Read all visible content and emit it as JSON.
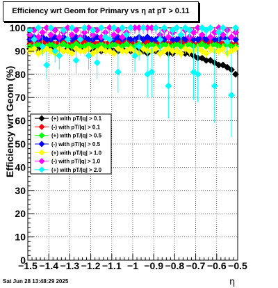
{
  "title": "Efficiency wrt Geom for Primary vs    η   at pT > 0.11",
  "footer": "Sat Jun 28 13:48:29 2025",
  "chart_data": {
    "type": "scatter",
    "title": "Efficiency wrt Geom for Primary vs    η   at pT > 0.11",
    "xlabel": "η",
    "ylabel": "Efficiency wrt Geom (%)",
    "xlim": [
      -1.5,
      -0.5
    ],
    "ylim": [
      0,
      100
    ],
    "grid": true,
    "legend_position": "left-middle",
    "x_ticks": [
      -1.5,
      -1.4,
      -1.3,
      -1.2,
      -1.1,
      -1.0,
      -0.9,
      -0.8,
      -0.7,
      -0.6,
      -0.5
    ],
    "x_tick_labels": [
      "−1.5",
      "−1.4",
      "−1.3",
      "−1.2",
      "−1.1",
      "−1",
      "−0.9",
      "−0.8",
      "−0.7",
      "−0.6",
      "−0.5"
    ],
    "y_ticks": [
      0,
      10,
      20,
      30,
      40,
      50,
      60,
      70,
      80,
      90,
      100
    ],
    "y_tick_labels": [
      "0",
      "10",
      "20",
      "30",
      "40",
      "50",
      "60",
      "70",
      "80",
      "90",
      "100"
    ],
    "x": [
      -1.49,
      -1.47,
      -1.45,
      -1.43,
      -1.41,
      -1.39,
      -1.37,
      -1.35,
      -1.33,
      -1.31,
      -1.29,
      -1.27,
      -1.25,
      -1.23,
      -1.21,
      -1.19,
      -1.17,
      -1.15,
      -1.13,
      -1.11,
      -1.09,
      -1.07,
      -1.05,
      -1.03,
      -1.01,
      -0.99,
      -0.97,
      -0.95,
      -0.93,
      -0.91,
      -0.89,
      -0.87,
      -0.85,
      -0.83,
      -0.81,
      -0.79,
      -0.77,
      -0.75,
      -0.73,
      -0.71,
      -0.69,
      -0.67,
      -0.65,
      -0.63,
      -0.61,
      -0.59,
      -0.57,
      -0.55,
      -0.53,
      -0.51
    ],
    "series": [
      {
        "name": "(+) with pT/|q| > 0.1",
        "color": "#000000",
        "values": [
          91,
          91,
          91,
          90,
          91,
          91,
          90,
          91,
          90,
          91,
          90,
          91,
          91,
          90,
          91,
          90,
          91,
          90,
          91,
          91,
          90,
          90,
          91,
          90,
          90,
          90,
          91,
          90,
          89,
          90,
          90,
          89,
          90,
          89,
          89,
          90,
          89,
          89,
          89,
          88,
          87,
          87,
          86,
          86,
          85,
          84,
          84,
          83,
          82,
          80
        ],
        "errors": [
          0.7,
          0.7,
          0.7,
          0.7,
          0.7,
          0.7,
          0.7,
          0.7,
          0.7,
          0.7,
          0.7,
          0.7,
          0.7,
          0.7,
          0.7,
          0.7,
          0.7,
          0.7,
          0.7,
          0.7,
          0.7,
          0.7,
          0.7,
          0.7,
          0.7,
          0.7,
          0.7,
          0.7,
          0.7,
          0.7,
          0.7,
          0.7,
          0.7,
          0.7,
          0.7,
          0.7,
          0.7,
          0.7,
          0.7,
          0.8,
          0.8,
          0.8,
          0.8,
          0.8,
          0.8,
          0.8,
          0.8,
          0.8,
          0.8,
          0.8
        ]
      },
      {
        "name": "(-) with pT/|q| > 0.1",
        "color": "#ff0000",
        "values": [
          93,
          94,
          93,
          94,
          93,
          94,
          93,
          94,
          94,
          93,
          93,
          94,
          93,
          94,
          93,
          94,
          93,
          94,
          93,
          94,
          93,
          94,
          93,
          94,
          93,
          94,
          93,
          93,
          94,
          93,
          94,
          93,
          94,
          93,
          94,
          93,
          94,
          93,
          94,
          93,
          93,
          94,
          93,
          94,
          93,
          94,
          93,
          94,
          93,
          93
        ],
        "errors": [
          0.6,
          0.6,
          0.6,
          0.6,
          0.6,
          0.6,
          0.6,
          0.6,
          0.6,
          0.6,
          0.6,
          0.6,
          0.6,
          0.6,
          0.6,
          0.6,
          0.6,
          0.6,
          0.6,
          0.6,
          0.6,
          0.6,
          0.6,
          0.6,
          0.6,
          0.6,
          0.6,
          0.6,
          0.6,
          0.6,
          0.6,
          0.6,
          0.6,
          0.6,
          0.6,
          0.6,
          0.6,
          0.6,
          0.6,
          0.6,
          0.6,
          0.6,
          0.6,
          0.6,
          0.6,
          0.6,
          0.6,
          0.6,
          0.6,
          0.6
        ]
      },
      {
        "name": "(+) with pT/|q| > 0.5",
        "color": "#00ff00",
        "values": [
          92,
          92,
          93,
          92,
          92,
          93,
          92,
          92,
          93,
          92,
          92,
          93,
          92,
          92,
          93,
          92,
          92,
          93,
          92,
          92,
          93,
          92,
          92,
          93,
          92,
          92,
          93,
          92,
          92,
          93,
          92,
          92,
          93,
          92,
          92,
          93,
          92,
          92,
          93,
          92,
          92,
          93,
          92,
          92,
          93,
          92,
          92,
          93,
          92,
          92
        ],
        "errors": [
          1.0,
          1.0,
          1.0,
          1.0,
          1.0,
          1.0,
          1.0,
          1.0,
          1.0,
          1.0,
          1.0,
          1.0,
          1.0,
          1.0,
          1.0,
          1.0,
          1.0,
          1.0,
          1.0,
          1.0,
          1.0,
          1.0,
          1.0,
          1.0,
          1.0,
          1.0,
          1.0,
          1.0,
          1.0,
          1.0,
          1.0,
          1.0,
          1.0,
          1.0,
          1.0,
          1.0,
          1.0,
          1.0,
          1.0,
          1.0,
          1.0,
          1.0,
          1.0,
          1.0,
          1.0,
          1.0,
          1.0,
          1.0,
          1.0,
          1.0
        ]
      },
      {
        "name": "(-) with pT/|q| > 0.5",
        "color": "#0000ff",
        "values": [
          95,
          96,
          95,
          96,
          95,
          95,
          96,
          95,
          96,
          95,
          95,
          96,
          95,
          96,
          95,
          95,
          96,
          95,
          96,
          95,
          95,
          96,
          95,
          96,
          95,
          95,
          96,
          95,
          96,
          95,
          95,
          96,
          95,
          96,
          95,
          95,
          96,
          95,
          96,
          95,
          95,
          96,
          95,
          96,
          95,
          95,
          96,
          95,
          96,
          95
        ],
        "errors": [
          1.0,
          1.0,
          1.0,
          1.0,
          1.0,
          1.0,
          1.0,
          1.0,
          1.0,
          1.0,
          1.0,
          1.0,
          1.0,
          1.0,
          1.0,
          1.0,
          1.0,
          1.0,
          1.0,
          1.0,
          1.0,
          1.0,
          1.0,
          1.0,
          1.0,
          1.0,
          1.0,
          1.0,
          1.0,
          1.0,
          1.0,
          1.0,
          1.0,
          1.0,
          1.0,
          1.0,
          1.0,
          1.0,
          1.0,
          1.0,
          1.0,
          1.0,
          1.0,
          1.0,
          1.0,
          1.0,
          1.0,
          1.0,
          1.0,
          1.0
        ]
      },
      {
        "name": "(+) with pT/|q| > 1.0",
        "color": "#ffff00",
        "values": [
          90,
          91,
          89,
          90,
          91,
          90,
          89,
          91,
          90,
          90,
          89,
          91,
          90,
          90,
          91,
          89,
          90,
          91,
          90,
          90,
          89,
          91,
          90,
          90,
          91,
          90,
          89,
          91,
          90,
          90,
          91,
          89,
          90,
          91,
          90,
          90,
          89,
          91,
          90,
          90,
          91,
          90,
          89,
          91,
          90,
          90,
          91,
          89,
          90,
          91
        ],
        "errors": [
          2.0,
          2.0,
          2.0,
          2.0,
          2.0,
          2.0,
          2.0,
          2.0,
          2.0,
          2.0,
          2.0,
          2.0,
          2.0,
          2.0,
          2.0,
          2.0,
          2.0,
          2.0,
          2.0,
          2.0,
          2.0,
          2.0,
          2.0,
          2.0,
          2.0,
          2.0,
          2.0,
          2.0,
          2.0,
          2.0,
          2.0,
          2.0,
          2.0,
          2.0,
          2.0,
          2.0,
          2.0,
          2.0,
          2.0,
          2.0,
          2.0,
          2.0,
          2.0,
          2.0,
          2.0,
          2.0,
          2.0,
          2.0,
          2.0,
          2.0
        ]
      },
      {
        "name": "(-) with pT/|q| > 1.0",
        "color": "#ff00ff",
        "values": [
          97,
          99,
          96,
          98,
          100,
          97,
          99,
          96,
          98,
          100,
          97,
          99,
          96,
          98,
          100,
          97,
          99,
          96,
          98,
          100,
          97,
          99,
          96,
          98,
          100,
          100,
          100,
          100,
          100,
          100,
          100,
          97,
          99,
          96,
          98,
          100,
          97,
          99,
          96,
          98,
          100,
          97,
          99,
          96,
          98,
          100,
          97,
          99,
          96,
          98
        ],
        "errors": [
          2.5,
          2.5,
          2.5,
          2.5,
          2.5,
          2.5,
          2.5,
          2.5,
          2.5,
          2.5,
          2.5,
          2.5,
          2.5,
          2.5,
          2.5,
          2.5,
          2.5,
          2.5,
          2.5,
          2.5,
          2.5,
          2.5,
          2.5,
          2.5,
          2.5,
          2.5,
          2.5,
          2.5,
          2.5,
          2.5,
          2.5,
          2.5,
          2.5,
          2.5,
          2.5,
          2.5,
          2.5,
          2.5,
          2.5,
          2.5,
          2.5,
          2.5,
          2.5,
          2.5,
          2.5,
          2.5,
          2.5,
          2.5,
          2.5,
          2.5
        ]
      },
      {
        "name": "(+) with pT/|q| > 2.0",
        "color": "#00ffff",
        "values": [
          99,
          95,
          100,
          92,
          84,
          100,
          90,
          88,
          99,
          95,
          100,
          86,
          95,
          100,
          88,
          99,
          85,
          100,
          96,
          95,
          100,
          81,
          100,
          97,
          100,
          88,
          92,
          100,
          80,
          81,
          100,
          95,
          100,
          75,
          99,
          100,
          97,
          100,
          99,
          81,
          80,
          100,
          99,
          100,
          75,
          98,
          100,
          94,
          71,
          100
        ],
        "errors": [
          2,
          3,
          2,
          4,
          6,
          2,
          5,
          6,
          2,
          3,
          2,
          6,
          4,
          2,
          6,
          3,
          7,
          2,
          4,
          4,
          2,
          9,
          2,
          4,
          2,
          7,
          6,
          2,
          10,
          11,
          2,
          5,
          2,
          14,
          3,
          2,
          4,
          2,
          3,
          12,
          12,
          2,
          3,
          2,
          16,
          4,
          2,
          6,
          18,
          2
        ]
      }
    ]
  }
}
